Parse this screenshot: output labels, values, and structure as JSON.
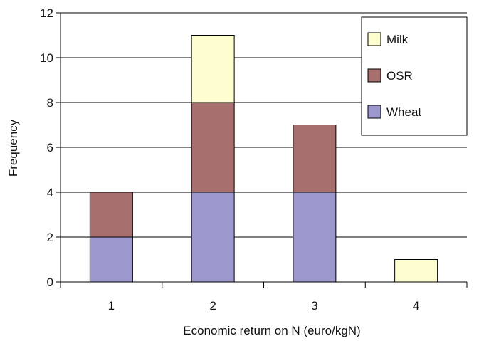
{
  "chart_data": {
    "type": "bar",
    "stacked": true,
    "title": "",
    "xlabel": "Economic return on N (euro/kgN)",
    "ylabel": "Frequency",
    "categories": [
      "1",
      "2",
      "3",
      "4"
    ],
    "ylim": [
      0,
      12
    ],
    "yticks": [
      "0",
      "2",
      "4",
      "6",
      "8",
      "10",
      "12"
    ],
    "grid": "horizontal",
    "legend_position": "top-right",
    "series": [
      {
        "name": "Wheat",
        "color": "#9c97cd",
        "values": [
          2,
          4,
          4,
          0
        ]
      },
      {
        "name": "OSR",
        "color": "#a7706f",
        "values": [
          2,
          4,
          3,
          0
        ]
      },
      {
        "name": "Milk",
        "color": "#fdfdd0",
        "values": [
          0,
          3,
          0,
          1
        ]
      }
    ],
    "legend_order": [
      "Milk",
      "OSR",
      "Wheat"
    ]
  }
}
